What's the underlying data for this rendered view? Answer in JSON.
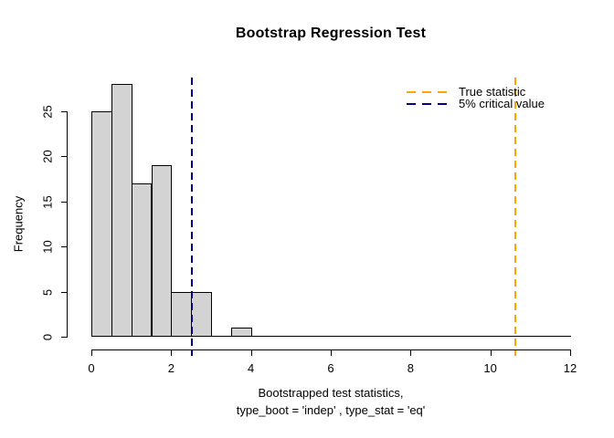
{
  "title": "Bootstrap Regression Test",
  "ylabel": "Frequency",
  "xlabel_line1": "Bootstrapped test statistics,",
  "xlabel_line2": "type_boot = 'indep' , type_stat = 'eq'",
  "legend": {
    "position": "topright",
    "box": false,
    "items": [
      {
        "label": "True statistic",
        "color": "#FFA500",
        "line_style": "dashed"
      },
      {
        "label": "5% critical value",
        "color": "#00008B",
        "line_style": "dashed"
      }
    ]
  },
  "chart_data": {
    "type": "bar",
    "subtype": "histogram",
    "title": "Bootstrap Regression Test",
    "xlabel": "Bootstrapped test statistics, type_boot = 'indep' , type_stat = 'eq'",
    "ylabel": "Frequency",
    "xlim": [
      0,
      12
    ],
    "ylim": [
      0,
      28
    ],
    "grid": false,
    "x_ticks": [
      0,
      2,
      4,
      6,
      8,
      10,
      12
    ],
    "y_ticks": [
      0,
      5,
      10,
      15,
      20,
      25
    ],
    "bin_start": 0,
    "bin_width": 0.5,
    "counts": [
      25,
      28,
      17,
      19,
      5,
      5,
      0,
      1,
      0,
      0,
      0,
      0,
      0,
      0,
      0,
      0,
      0,
      0,
      0,
      0,
      0,
      0,
      0,
      0
    ],
    "bar_fill": "#D3D3D3",
    "bar_stroke": "#000000",
    "vlines": [
      {
        "x": 10.62,
        "label": "True statistic",
        "color": "#FFA500",
        "style": "dashed",
        "width": 2
      },
      {
        "x": 2.53,
        "label": "5% critical value",
        "color": "#00008B",
        "style": "dashed",
        "width": 2
      }
    ],
    "legend_position": "topright"
  }
}
